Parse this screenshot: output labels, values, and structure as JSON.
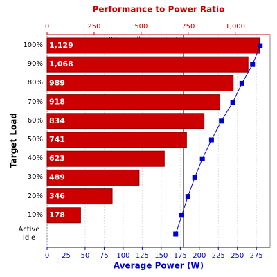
{
  "chart_data": {
    "type": "bar",
    "title": "Performance to Power Ratio",
    "x_label": "Average Power (W)",
    "y_label": "Target Load",
    "categories": [
      "100%",
      "90%",
      "80%",
      "70%",
      "60%",
      "50%",
      "40%",
      "30%",
      "20%",
      "10%",
      "Active Idle"
    ],
    "series": [
      {
        "name": "Performance to Power Ratio",
        "axis": "x2",
        "mark": "bar",
        "color": "#cc0000",
        "values": [
          1129,
          1068,
          989,
          918,
          834,
          741,
          623,
          489,
          346,
          178,
          null
        ],
        "value_labels": [
          "1,129",
          "1,068",
          "989",
          "918",
          "834",
          "741",
          "623",
          "489",
          "346",
          "178",
          null
        ]
      },
      {
        "name": "Average Power (W)",
        "axis": "x",
        "mark": "line",
        "color": "#0000cc",
        "values": [
          280,
          270,
          256,
          244,
          229,
          216,
          204,
          194,
          185,
          177,
          169
        ]
      }
    ],
    "xlim": [
      0,
      293
    ],
    "xticks": [
      0,
      25,
      50,
      75,
      100,
      125,
      150,
      175,
      200,
      225,
      250,
      275
    ],
    "x2lim": [
      0,
      1185
    ],
    "x2ticks": [
      0,
      250,
      500,
      750,
      {
        "value": 1000,
        "label": "1,000"
      }
    ],
    "reference_line": {
      "label": "NC overall ssj_ops/watt",
      "value": 724
    },
    "grid": true
  }
}
